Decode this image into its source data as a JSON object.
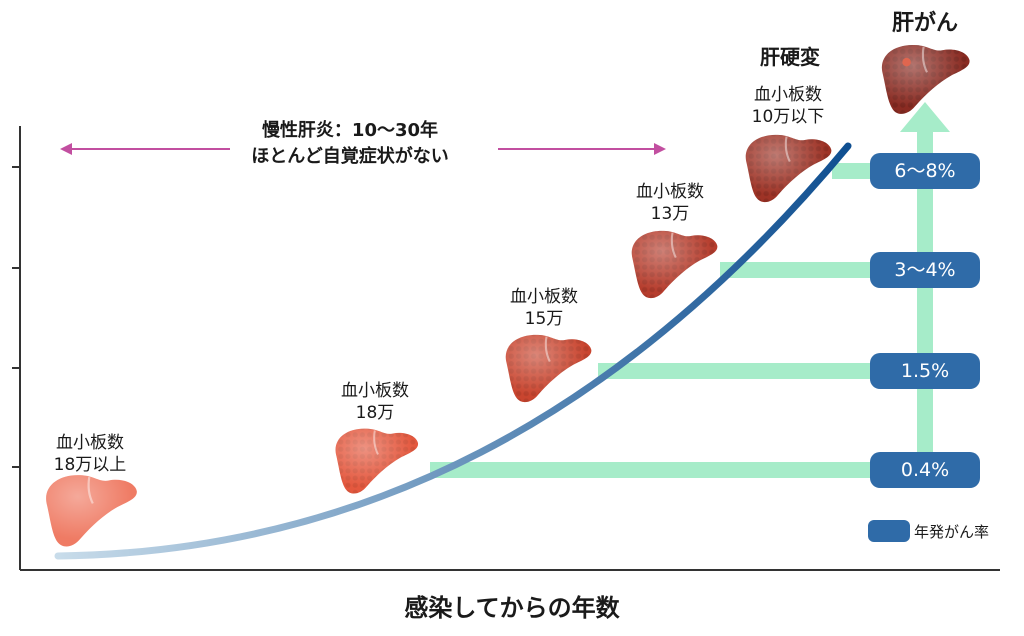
{
  "period": {
    "line1": "慢性肝炎：10〜30年",
    "line2": "ほとんど自覚症状がない"
  },
  "stages": [
    {
      "line1": "血小板数",
      "line2": "18万以上",
      "color": "#ef7b64"
    },
    {
      "line1": "血小板数",
      "line2": "18万",
      "color": "#e4583e"
    },
    {
      "line1": "血小板数",
      "line2": "15万",
      "color": "#c9452f"
    },
    {
      "line1": "血小板数",
      "line2": "13万",
      "color": "#b63d2d"
    },
    {
      "line1": "血小板数",
      "line2": "10万以下",
      "color": "#9e3326"
    }
  ],
  "cirrhosis_title": "肝硬変",
  "cancer_title": "肝がん",
  "cancer_color": "#8a2b22",
  "rates": [
    "6〜8%",
    "3〜4%",
    "1.5%",
    "0.4%"
  ],
  "legend": "年発がん率",
  "x_axis_label": "感染してからの年数",
  "colors": {
    "curve_start": "#c8dcea",
    "curve_end": "#0f4f91",
    "badge": "#2f6ba8",
    "connector": "#a6ecc9",
    "arrow": "#a6ecc9",
    "period_arrow": "#c24fa0"
  }
}
